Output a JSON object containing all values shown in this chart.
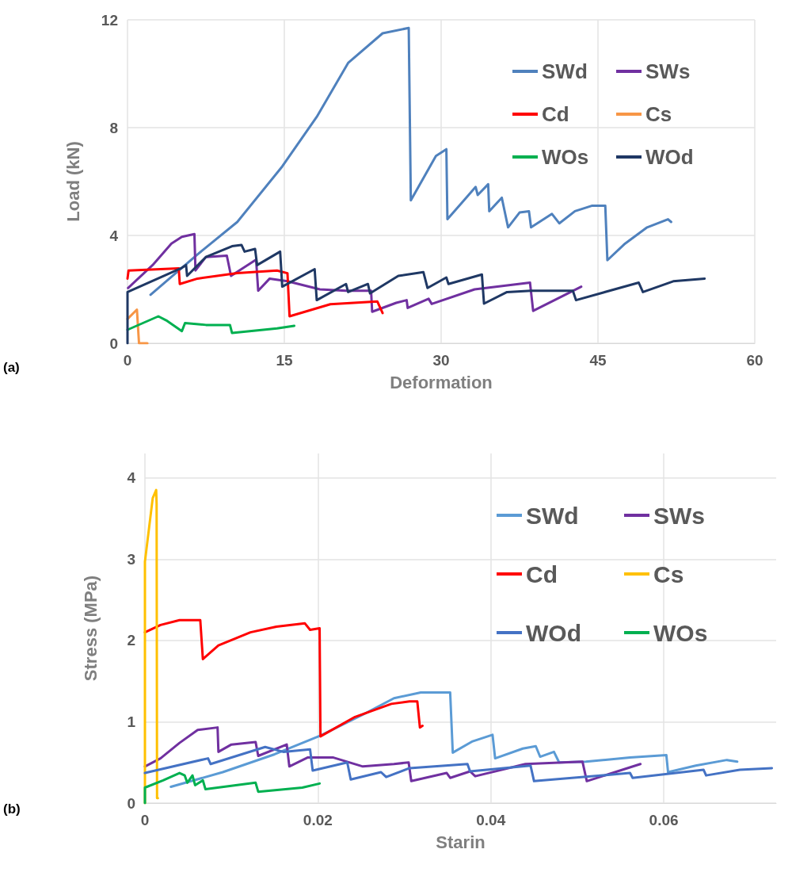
{
  "chart_data": [
    {
      "type": "line",
      "xlabel": "Deformation",
      "ylabel": "Load (kN)",
      "annotations": [
        "(a)"
      ],
      "xlim": [
        0,
        60
      ],
      "xticks": [
        0,
        15,
        30,
        45,
        60
      ],
      "ylim": [
        0,
        12
      ],
      "yticks": [
        0,
        4,
        8,
        12
      ],
      "grid": true,
      "legend": "top right",
      "marker": "none",
      "line_style": "solid",
      "series": [
        {
          "name": "SWd",
          "color": "#4f81bd",
          "x": [
            2.2,
            6.7,
            10.5,
            14.8,
            18.1,
            21.1,
            24.4,
            26.9,
            27.1,
            29.5,
            30.5,
            30.6,
            33.3,
            33.5,
            34.5,
            34.6,
            35.8,
            36.4,
            37.5,
            38.4,
            38.6,
            40.6,
            41.3,
            42.8,
            44.4,
            45.7,
            45.9,
            47.6,
            49.7,
            51.7,
            52.0
          ],
          "values": [
            1.8,
            3.3,
            4.5,
            6.56,
            8.4,
            10.4,
            11.5,
            11.7,
            5.3,
            6.95,
            7.2,
            4.6,
            5.8,
            5.5,
            5.9,
            4.9,
            5.4,
            4.3,
            4.85,
            4.9,
            4.3,
            4.8,
            4.45,
            4.9,
            5.1,
            5.1,
            3.08,
            3.7,
            4.3,
            4.6,
            4.5
          ]
        },
        {
          "name": "SWs",
          "color": "#7030a0",
          "x": [
            0.05,
            2.4,
            4.2,
            5.2,
            6.4,
            6.5,
            7.5,
            9.5,
            9.9,
            12.3,
            12.5,
            13.6,
            15.3,
            18.4,
            20.9,
            23.3,
            23.4,
            25.7,
            26.7,
            26.8,
            28.8,
            29.1,
            33.2,
            38.5,
            38.8,
            43.4
          ],
          "values": [
            2.05,
            2.9,
            3.7,
            3.95,
            4.05,
            2.7,
            3.2,
            3.25,
            2.5,
            3.1,
            1.95,
            2.4,
            2.3,
            2.0,
            1.95,
            1.95,
            1.17,
            1.5,
            1.6,
            1.31,
            1.65,
            1.46,
            2.0,
            2.25,
            1.2,
            2.1
          ]
        },
        {
          "name": "Cd",
          "color": "#ff0000",
          "x": [
            0,
            0.1,
            4.9,
            5.0,
            6.7,
            10.5,
            14.3,
            15.3,
            15.5,
            19.4,
            23.9,
            24.4
          ],
          "values": [
            2.4,
            2.7,
            2.78,
            2.2,
            2.4,
            2.6,
            2.7,
            2.6,
            1.0,
            1.45,
            1.55,
            1.12
          ]
        },
        {
          "name": "Cs",
          "color": "#f79646",
          "x": [
            0,
            0.9,
            1.1,
            1.9
          ],
          "values": [
            0.9,
            1.25,
            0,
            0
          ]
        },
        {
          "name": "WOs",
          "color": "#00b050",
          "x": [
            0,
            2.95,
            3.7,
            5.2,
            5.5,
            7.5,
            9.8,
            10.0,
            14.3,
            15.95
          ],
          "values": [
            0.5,
            1.0,
            0.85,
            0.45,
            0.75,
            0.68,
            0.68,
            0.38,
            0.55,
            0.65
          ]
        },
        {
          "name": "WOd",
          "color": "#1f3864",
          "x": [
            0,
            0,
            5.2,
            5.6,
            5.7,
            7.5,
            10.0,
            10.9,
            11.2,
            12.2,
            12.4,
            14.6,
            14.8,
            17.9,
            18.1,
            20.9,
            21.1,
            23.0,
            23.2,
            25.9,
            28.3,
            28.7,
            30.5,
            30.7,
            33.9,
            34.1,
            36.3,
            38.6,
            42.6,
            42.9,
            48.9,
            49.3,
            52.2,
            55.2
          ],
          "values": [
            0,
            1.9,
            2.8,
            2.9,
            2.5,
            3.2,
            3.6,
            3.65,
            3.4,
            3.5,
            2.9,
            3.4,
            2.1,
            2.75,
            1.6,
            2.2,
            1.9,
            2.2,
            1.85,
            2.5,
            2.64,
            2.05,
            2.44,
            2.2,
            2.55,
            1.47,
            1.9,
            1.95,
            1.95,
            1.6,
            2.25,
            1.9,
            2.3,
            2.4
          ]
        }
      ]
    },
    {
      "type": "line",
      "xlabel": "Starin",
      "ylabel": "Stress (MPa)",
      "annotations": [
        "(b)"
      ],
      "xlim": [
        0,
        0.073
      ],
      "xticks": [
        0,
        0.02,
        0.04,
        0.06
      ],
      "ylim": [
        0,
        4.3
      ],
      "yticks": [
        0,
        1,
        2,
        3,
        4
      ],
      "grid": true,
      "legend": "top right",
      "marker": "none",
      "line_style": "solid",
      "series": [
        {
          "name": "SWd",
          "color": "#5b9bd5",
          "x": [
            0.003,
            0.009,
            0.015,
            0.0203,
            0.0258,
            0.0288,
            0.0319,
            0.0353,
            0.0356,
            0.0379,
            0.0402,
            0.0405,
            0.0437,
            0.0452,
            0.0457,
            0.0473,
            0.0479,
            0.051,
            0.0561,
            0.0603,
            0.0605,
            0.0637,
            0.0673,
            0.0685
          ],
          "values": [
            0.2,
            0.38,
            0.6,
            0.83,
            1.12,
            1.29,
            1.36,
            1.36,
            0.62,
            0.76,
            0.84,
            0.55,
            0.67,
            0.7,
            0.57,
            0.63,
            0.5,
            0.51,
            0.56,
            0.59,
            0.38,
            0.46,
            0.53,
            0.51
          ]
        },
        {
          "name": "SWs",
          "color": "#7030a0",
          "x": [
            0,
            0.0018,
            0.004,
            0.0061,
            0.0084,
            0.0085,
            0.01,
            0.0128,
            0.0131,
            0.0164,
            0.0167,
            0.0188,
            0.0218,
            0.0252,
            0.0288,
            0.0305,
            0.0308,
            0.0349,
            0.0353,
            0.0376,
            0.0382,
            0.044,
            0.0506,
            0.0511,
            0.0573
          ],
          "values": [
            0.45,
            0.55,
            0.74,
            0.9,
            0.93,
            0.63,
            0.72,
            0.75,
            0.58,
            0.72,
            0.45,
            0.56,
            0.56,
            0.45,
            0.48,
            0.5,
            0.27,
            0.37,
            0.31,
            0.39,
            0.33,
            0.48,
            0.51,
            0.27,
            0.48
          ]
        },
        {
          "name": "Cd",
          "color": "#ff0000",
          "x": [
            0,
            0.0018,
            0.004,
            0.0064,
            0.0067,
            0.0085,
            0.0122,
            0.0152,
            0.0185,
            0.0191,
            0.0202,
            0.0203,
            0.0243,
            0.0285,
            0.0306,
            0.0315,
            0.0318,
            0.0321
          ],
          "values": [
            2.1,
            2.19,
            2.25,
            2.25,
            1.77,
            1.94,
            2.1,
            2.17,
            2.21,
            2.13,
            2.15,
            0.82,
            1.06,
            1.22,
            1.25,
            1.25,
            0.93,
            0.95
          ]
        },
        {
          "name": "Cs",
          "color": "#ffc000",
          "x": [
            0,
            0,
            0.0009,
            0.0013,
            0.00135,
            0.0014,
            0.0015
          ],
          "values": [
            0,
            2.97,
            3.75,
            3.85,
            3.68,
            0.06,
            0.06
          ]
        },
        {
          "name": "WOd",
          "color": "#4472c4",
          "x": [
            0,
            0.0073,
            0.0076,
            0.0139,
            0.016,
            0.0191,
            0.0194,
            0.0234,
            0.0238,
            0.0273,
            0.0279,
            0.0306,
            0.0373,
            0.0376,
            0.0446,
            0.045,
            0.0561,
            0.0564,
            0.0646,
            0.0649,
            0.0688,
            0.0725
          ],
          "values": [
            0.37,
            0.55,
            0.48,
            0.69,
            0.63,
            0.66,
            0.4,
            0.5,
            0.29,
            0.38,
            0.32,
            0.43,
            0.48,
            0.39,
            0.46,
            0.27,
            0.37,
            0.31,
            0.41,
            0.34,
            0.41,
            0.43
          ]
        },
        {
          "name": "WOs",
          "color": "#00b050",
          "x": [
            0,
            0,
            0.0021,
            0.004,
            0.0046,
            0.0049,
            0.0055,
            0.0058,
            0.0067,
            0.007,
            0.0128,
            0.0131,
            0.0182,
            0.0202
          ],
          "values": [
            0,
            0.19,
            0.28,
            0.37,
            0.34,
            0.25,
            0.34,
            0.22,
            0.28,
            0.17,
            0.25,
            0.14,
            0.19,
            0.24
          ]
        }
      ]
    }
  ]
}
